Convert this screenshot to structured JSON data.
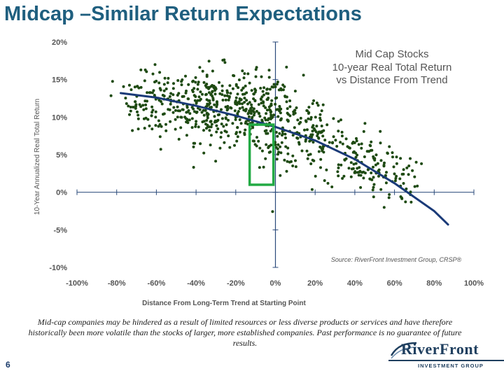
{
  "slide": {
    "title": "Midcap –Similar Return Expectations",
    "page_number": "6",
    "disclaimer": "Mid-cap companies may be hindered as a result of limited resources or less diverse products or services and have therefore historically been more volatile than the stocks of larger, more established companies. Past performance is no guarantee of future results."
  },
  "logo": {
    "brand": "RiverFront",
    "subtitle": "INVESTMENT GROUP"
  },
  "colors": {
    "title": "#1f5f7f",
    "dots": "#1e4a12",
    "trend": "#1a3a78",
    "highlight": "#22aa44",
    "axis": "#2a4a7a",
    "tick_labels": "#555555"
  },
  "chart_data": {
    "type": "scatter",
    "title_lines": [
      "Mid Cap Stocks",
      "10-year Real Total Return",
      "vs Distance From Trend"
    ],
    "source": "Source: RiverFront Investment Group, CRSP®",
    "xlabel": "Distance From Long-Term Trend at Starting Point",
    "ylabel": "10-Year Annualized Real Total Return",
    "xlim": [
      -1.0,
      1.0
    ],
    "ylim": [
      -0.1,
      0.2
    ],
    "x_ticks": [
      -1.0,
      -0.8,
      -0.6,
      -0.4,
      -0.2,
      0.0,
      0.2,
      0.4,
      0.6,
      0.8,
      1.0
    ],
    "x_tick_labels": [
      "-100%",
      "-80%",
      "-60%",
      "-40%",
      "-20%",
      "0%",
      "20%",
      "40%",
      "60%",
      "80%",
      "100%"
    ],
    "y_ticks": [
      0.2,
      0.15,
      0.1,
      0.05,
      0.0,
      -0.05,
      -0.1
    ],
    "y_tick_labels": [
      "20%",
      "15%",
      "10%",
      "5%",
      "0%",
      "-5%",
      "-10%"
    ],
    "trend_line": {
      "x": [
        -0.78,
        -0.6,
        -0.4,
        -0.2,
        0.0,
        0.2,
        0.4,
        0.6,
        0.8,
        0.87
      ],
      "y": [
        0.132,
        0.126,
        0.115,
        0.102,
        0.087,
        0.069,
        0.044,
        0.012,
        -0.025,
        -0.043
      ]
    },
    "highlight_box": {
      "x_range": [
        -0.13,
        -0.01
      ],
      "y_range": [
        0.01,
        0.09
      ]
    },
    "scatter_clusters": [
      {
        "cx": -0.55,
        "cy": 0.115,
        "sx": 0.09,
        "sy": 0.022,
        "n": 120
      },
      {
        "cx": -0.33,
        "cy": 0.118,
        "sx": 0.08,
        "sy": 0.025,
        "n": 180
      },
      {
        "cx": -0.12,
        "cy": 0.105,
        "sx": 0.08,
        "sy": 0.025,
        "n": 170
      },
      {
        "cx": 0.02,
        "cy": 0.095,
        "sx": 0.06,
        "sy": 0.03,
        "n": 110
      },
      {
        "cx": 0.2,
        "cy": 0.075,
        "sx": 0.08,
        "sy": 0.025,
        "n": 100
      },
      {
        "cx": 0.4,
        "cy": 0.045,
        "sx": 0.08,
        "sy": 0.02,
        "n": 90
      },
      {
        "cx": 0.58,
        "cy": 0.02,
        "sx": 0.07,
        "sy": 0.018,
        "n": 60
      },
      {
        "cx": -0.72,
        "cy": 0.12,
        "sx": 0.05,
        "sy": 0.02,
        "n": 25
      }
    ]
  }
}
